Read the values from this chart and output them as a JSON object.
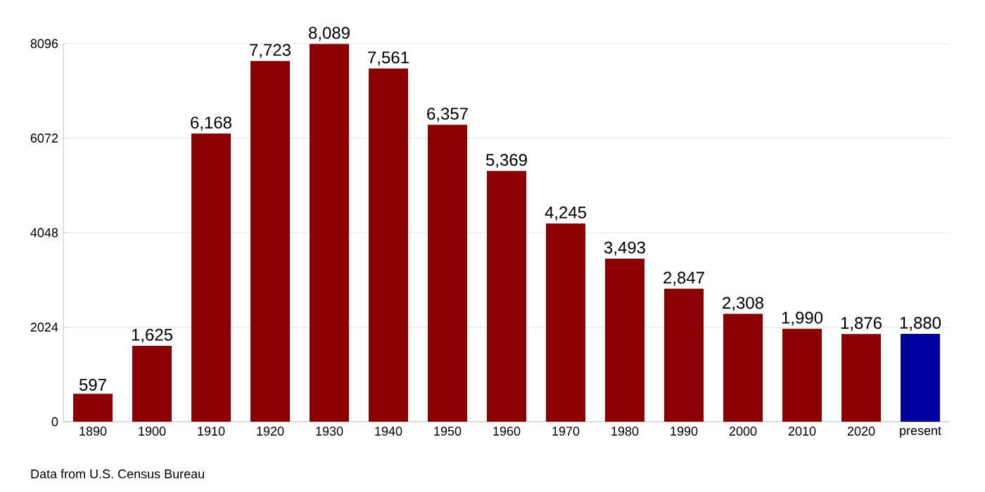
{
  "chart_data": {
    "type": "bar",
    "categories": [
      "1890",
      "1900",
      "1910",
      "1920",
      "1930",
      "1940",
      "1950",
      "1960",
      "1970",
      "1980",
      "1990",
      "2000",
      "2010",
      "2020",
      "present"
    ],
    "values": [
      597,
      1625,
      6168,
      7723,
      8089,
      7561,
      6357,
      5369,
      4245,
      3493,
      2847,
      2308,
      1990,
      1876,
      1880
    ],
    "colors": [
      "#8b0000",
      "#8b0000",
      "#8b0000",
      "#8b0000",
      "#8b0000",
      "#8b0000",
      "#8b0000",
      "#8b0000",
      "#8b0000",
      "#8b0000",
      "#8b0000",
      "#8b0000",
      "#8b0000",
      "#8b0000",
      "#0000a0"
    ],
    "ylim": [
      0,
      8096
    ],
    "yticks": [
      0,
      2024,
      4048,
      6072,
      8096
    ],
    "value_labels": [
      "597",
      "1,625",
      "6,168",
      "7,723",
      "8,089",
      "7,561",
      "6,357",
      "5,369",
      "4,245",
      "3,493",
      "2,847",
      "2,308",
      "1,990",
      "1,876",
      "1,880"
    ],
    "grid": "y",
    "annotations": [
      "Data from U.S. Census Bureau"
    ]
  }
}
